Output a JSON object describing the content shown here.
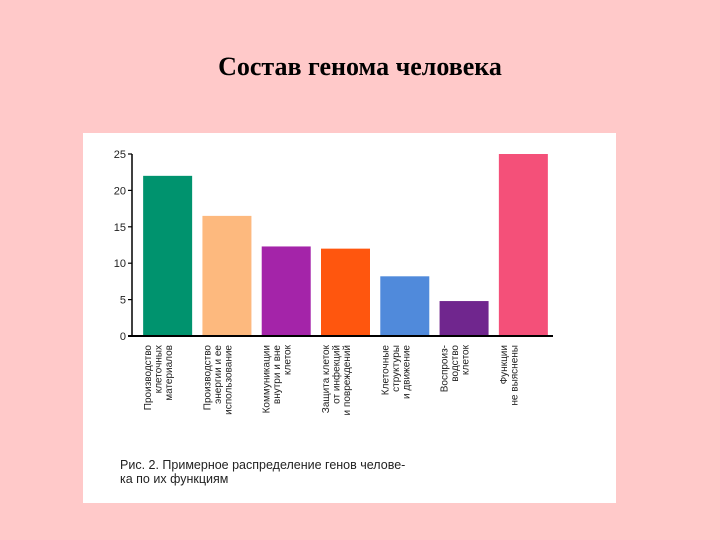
{
  "slide": {
    "title": "Состав генома человека",
    "background": "#FFC9C9"
  },
  "chart_data": {
    "type": "bar",
    "ylim": [
      0,
      25
    ],
    "yticks": [
      0,
      5,
      10,
      15,
      20,
      25
    ],
    "grid": false,
    "categories": [
      [
        "Производство",
        "клеточных",
        "материалов"
      ],
      [
        "Производство",
        "энергии и ее",
        "использование"
      ],
      [
        "Коммуникации",
        "внутри и вне",
        "клеток"
      ],
      [
        "Защита клеток",
        "от инфекций",
        "и повреждений"
      ],
      [
        "Клеточные",
        "структуры",
        "и движение"
      ],
      [
        "Воспроиз-",
        "водство",
        "клеток"
      ],
      [
        "Функции",
        "не выяснены"
      ]
    ],
    "values": [
      22,
      16.5,
      12.3,
      12,
      8.2,
      4.8,
      25
    ],
    "colors": [
      "#00936E",
      "#FDB97E",
      "#A424A9",
      "#FF560E",
      "#508ADB",
      "#70268E",
      "#F45079"
    ],
    "caption": [
      "Рис. 2. Примерное распределение генов челове-",
      "ка по их функциям"
    ]
  }
}
